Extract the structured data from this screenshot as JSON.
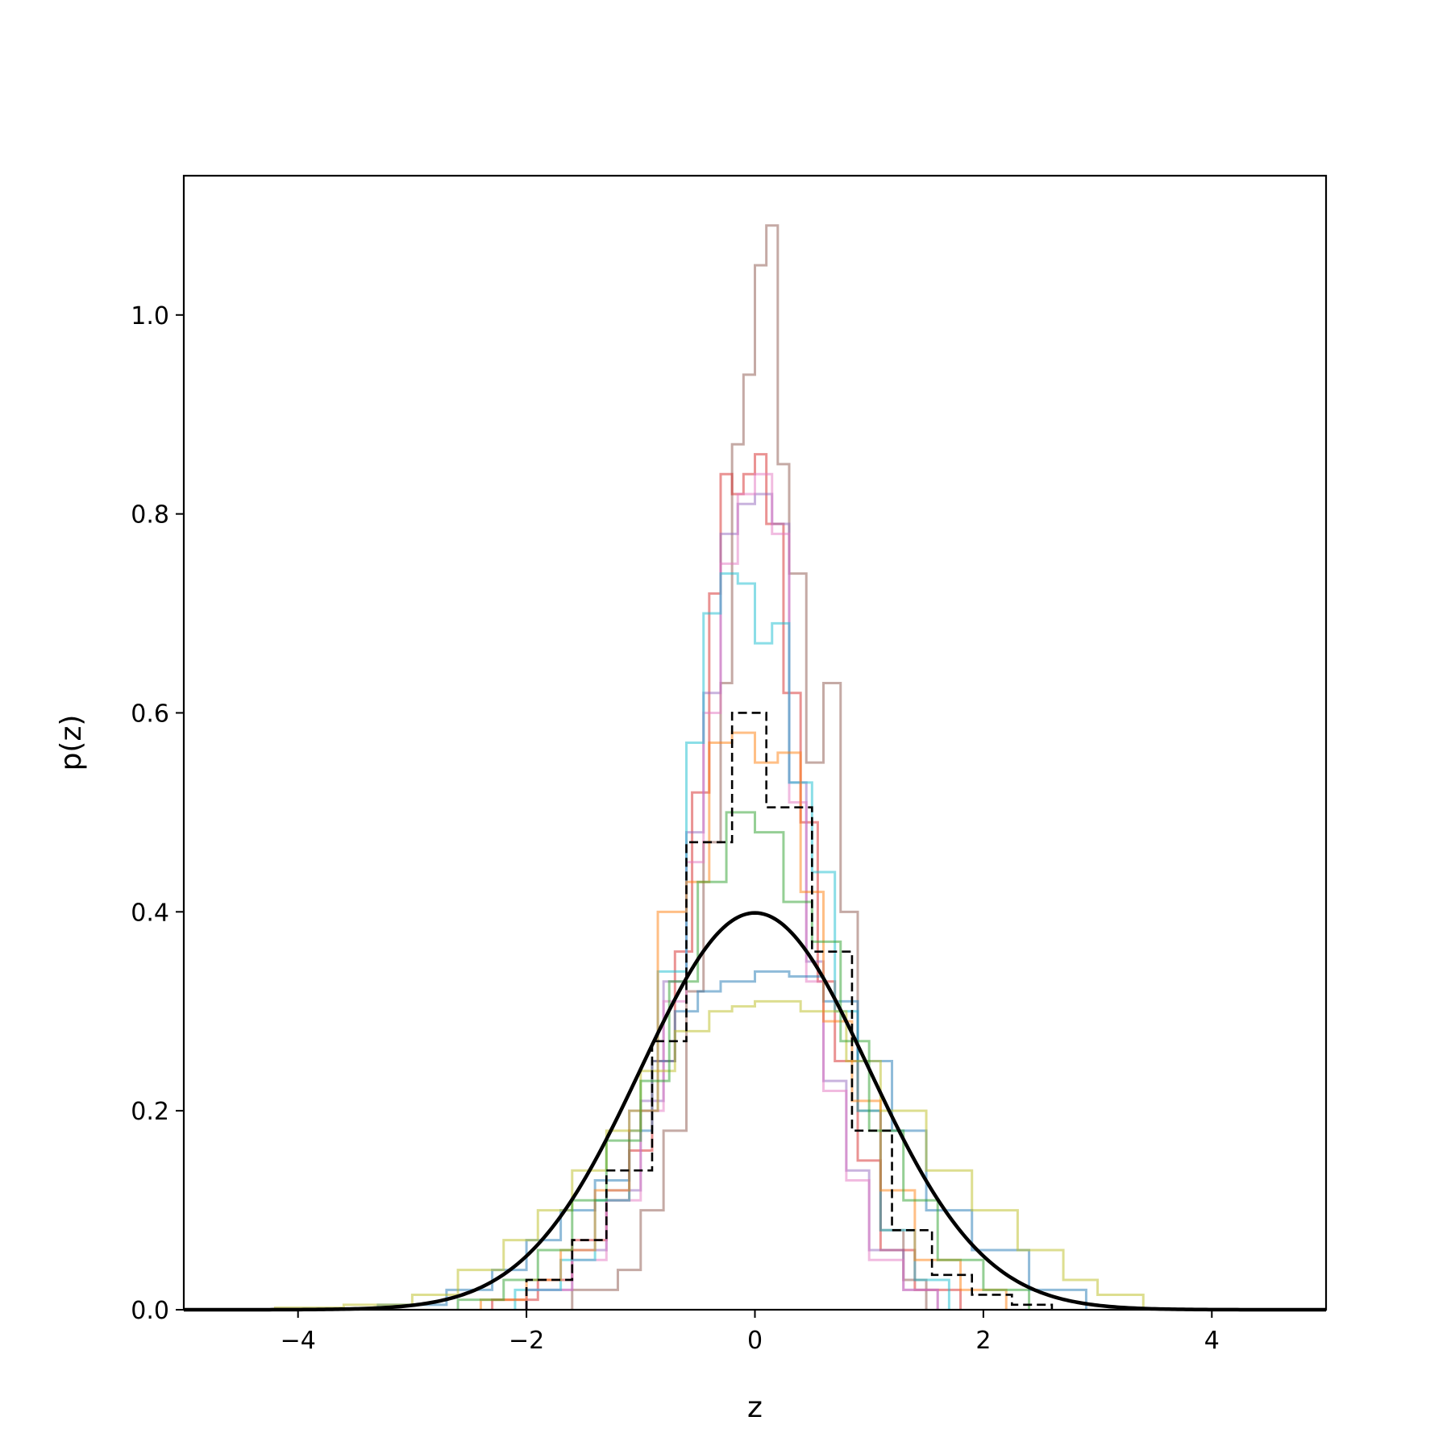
{
  "chart_data": {
    "type": "step histogram",
    "xlabel": "z",
    "ylabel": "p(z)",
    "xlim": [
      -5,
      5
    ],
    "ylim": [
      0,
      1.14
    ],
    "x_ticks": [
      -4,
      -2,
      0,
      2,
      4
    ],
    "x_tick_labels": [
      "−4",
      "−2",
      "0",
      "2",
      "4"
    ],
    "y_ticks": [
      0.0,
      0.2,
      0.4,
      0.6,
      0.8,
      1.0
    ],
    "y_tick_labels": [
      "0.0",
      "0.2",
      "0.4",
      "0.6",
      "0.8",
      "1.0"
    ],
    "grid": false,
    "legend": "none",
    "reference_curve": {
      "description": "standard normal density",
      "color": "#000000",
      "mean": 0,
      "std": 1
    },
    "series": [
      {
        "color": "#000000",
        "style": "dashed",
        "edges": [
          -2.0,
          -1.6,
          -1.3,
          -0.9,
          -0.6,
          -0.2,
          0.1,
          0.5,
          0.85,
          1.2,
          1.55,
          1.9,
          2.25,
          2.6
        ],
        "values": [
          0.03,
          0.07,
          0.14,
          0.27,
          0.47,
          0.6,
          0.505,
          0.36,
          0.18,
          0.08,
          0.035,
          0.015,
          0.005
        ]
      },
      {
        "color": "#8c564b",
        "edges": [
          -1.6,
          -1.2,
          -1.0,
          -0.8,
          -0.6,
          -0.45,
          -0.3,
          -0.2,
          -0.1,
          0.0,
          0.1,
          0.2,
          0.3,
          0.45,
          0.6,
          0.75,
          0.9,
          1.1,
          1.3,
          1.5
        ],
        "values": [
          0.02,
          0.04,
          0.1,
          0.18,
          0.32,
          0.47,
          0.63,
          0.87,
          0.94,
          1.05,
          1.09,
          0.85,
          0.74,
          0.55,
          0.63,
          0.4,
          0.2,
          0.08,
          0.03
        ]
      },
      {
        "color": "#d62728",
        "edges": [
          -2.3,
          -1.9,
          -1.6,
          -1.3,
          -1.1,
          -0.9,
          -0.7,
          -0.55,
          -0.4,
          -0.3,
          -0.2,
          -0.1,
          0.0,
          0.1,
          0.25,
          0.4,
          0.55,
          0.7,
          0.9,
          1.1,
          1.4,
          1.8
        ],
        "values": [
          0.01,
          0.03,
          0.07,
          0.11,
          0.16,
          0.25,
          0.36,
          0.52,
          0.72,
          0.84,
          0.82,
          0.84,
          0.86,
          0.79,
          0.62,
          0.49,
          0.33,
          0.25,
          0.15,
          0.06,
          0.02
        ]
      },
      {
        "color": "#9467bd",
        "edges": [
          -2.0,
          -1.6,
          -1.3,
          -1.0,
          -0.8,
          -0.6,
          -0.45,
          -0.3,
          -0.15,
          0.0,
          0.15,
          0.3,
          0.45,
          0.6,
          0.8,
          1.0,
          1.3,
          1.6
        ],
        "values": [
          0.02,
          0.06,
          0.12,
          0.21,
          0.33,
          0.48,
          0.62,
          0.78,
          0.81,
          0.82,
          0.79,
          0.53,
          0.35,
          0.23,
          0.14,
          0.06,
          0.02
        ]
      },
      {
        "color": "#e377c2",
        "edges": [
          -2.0,
          -1.6,
          -1.3,
          -1.0,
          -0.8,
          -0.6,
          -0.45,
          -0.3,
          -0.15,
          0.0,
          0.15,
          0.3,
          0.45,
          0.6,
          0.8,
          1.0,
          1.3,
          1.6
        ],
        "values": [
          0.02,
          0.05,
          0.11,
          0.2,
          0.31,
          0.45,
          0.6,
          0.75,
          0.82,
          0.84,
          0.78,
          0.51,
          0.33,
          0.22,
          0.13,
          0.05,
          0.02
        ]
      },
      {
        "color": "#17becf",
        "edges": [
          -2.1,
          -1.7,
          -1.4,
          -1.1,
          -0.85,
          -0.6,
          -0.45,
          -0.3,
          -0.15,
          0.0,
          0.15,
          0.3,
          0.5,
          0.7,
          0.9,
          1.1,
          1.4,
          1.7
        ],
        "values": [
          0.02,
          0.05,
          0.11,
          0.2,
          0.34,
          0.57,
          0.7,
          0.74,
          0.73,
          0.67,
          0.69,
          0.53,
          0.44,
          0.3,
          0.2,
          0.08,
          0.03
        ]
      },
      {
        "color": "#1f77b4",
        "edges": [
          -3.3,
          -2.7,
          -2.3,
          -2.0,
          -1.7,
          -1.4,
          -1.1,
          -0.9,
          -0.7,
          -0.5,
          -0.3,
          0.0,
          0.3,
          0.6,
          0.9,
          1.2,
          1.5,
          1.9,
          2.4,
          2.9
        ],
        "values": [
          0.005,
          0.02,
          0.04,
          0.07,
          0.1,
          0.13,
          0.18,
          0.25,
          0.3,
          0.32,
          0.33,
          0.34,
          0.335,
          0.31,
          0.25,
          0.18,
          0.1,
          0.06,
          0.02
        ]
      },
      {
        "color": "#bcbd22",
        "edges": [
          -4.2,
          -3.6,
          -3.0,
          -2.6,
          -2.2,
          -1.9,
          -1.6,
          -1.3,
          -1.0,
          -0.7,
          -0.4,
          -0.2,
          0.0,
          0.4,
          0.8,
          1.1,
          1.5,
          1.9,
          2.3,
          2.7,
          3.0,
          3.4
        ],
        "values": [
          0.002,
          0.005,
          0.015,
          0.04,
          0.07,
          0.1,
          0.14,
          0.18,
          0.24,
          0.28,
          0.3,
          0.305,
          0.31,
          0.3,
          0.25,
          0.2,
          0.14,
          0.1,
          0.06,
          0.03,
          0.015
        ]
      },
      {
        "color": "#ff7f0e",
        "edges": [
          -2.4,
          -2.0,
          -1.7,
          -1.4,
          -1.1,
          -0.85,
          -0.6,
          -0.4,
          -0.2,
          0.0,
          0.2,
          0.4,
          0.6,
          0.85,
          1.1,
          1.4,
          1.8,
          2.2
        ],
        "values": [
          0.01,
          0.03,
          0.06,
          0.12,
          0.2,
          0.4,
          0.43,
          0.57,
          0.58,
          0.55,
          0.56,
          0.42,
          0.29,
          0.21,
          0.12,
          0.05,
          0.02
        ]
      },
      {
        "color": "#2ca02c",
        "edges": [
          -2.6,
          -2.2,
          -1.9,
          -1.6,
          -1.3,
          -1.0,
          -0.75,
          -0.5,
          -0.25,
          0.0,
          0.25,
          0.5,
          0.75,
          1.0,
          1.3,
          1.6,
          2.0,
          2.4
        ],
        "values": [
          0.01,
          0.03,
          0.06,
          0.11,
          0.17,
          0.23,
          0.33,
          0.43,
          0.5,
          0.48,
          0.41,
          0.37,
          0.27,
          0.18,
          0.11,
          0.05,
          0.02
        ]
      }
    ]
  }
}
